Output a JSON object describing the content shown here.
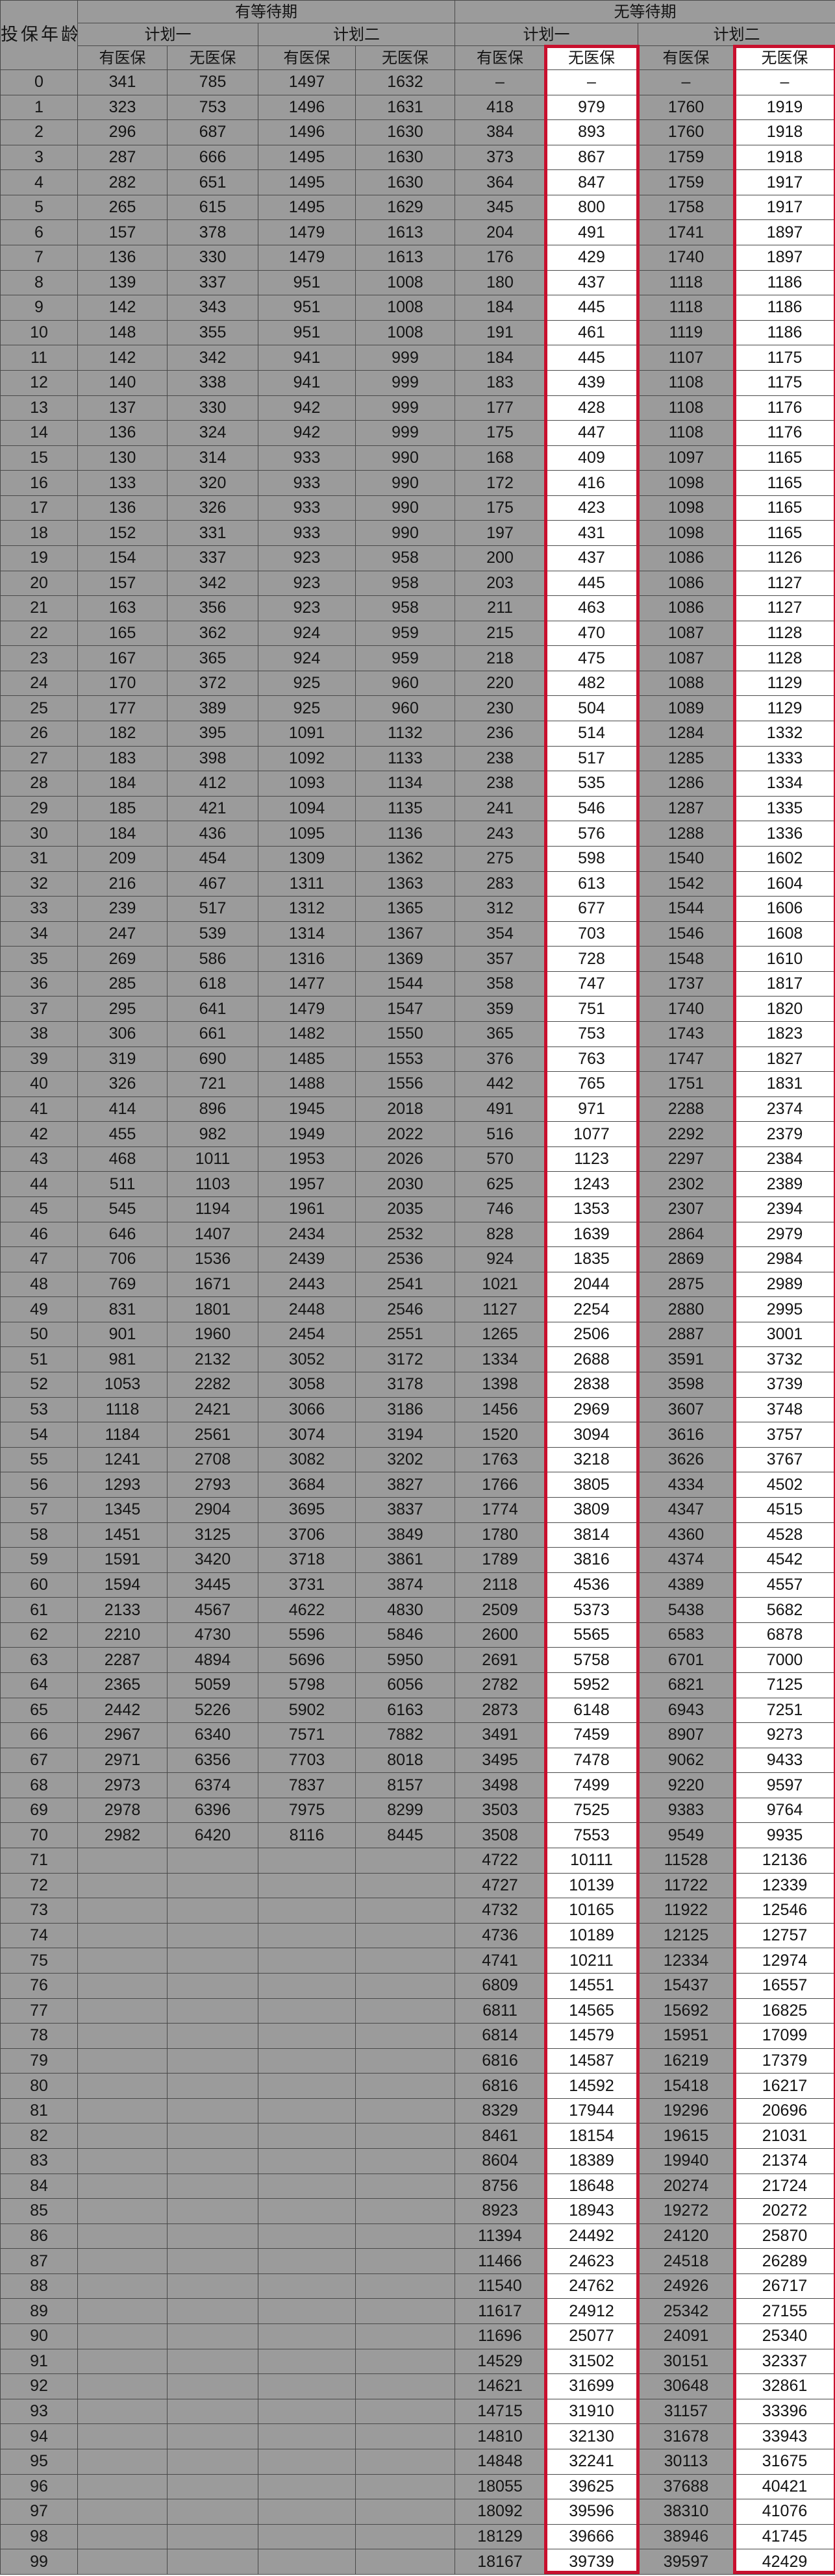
{
  "headers": {
    "age": "投保年龄（周岁）",
    "group_waiting": "有等待期",
    "group_no_waiting": "无等待期",
    "plan1": "计划一",
    "plan2": "计划二",
    "with_insurance": "有医保",
    "without_insurance": "无医保"
  },
  "rows": [
    [
      "0",
      "341",
      "785",
      "1497",
      "1632",
      "–",
      "–",
      "–",
      "–"
    ],
    [
      "1",
      "323",
      "753",
      "1496",
      "1631",
      "418",
      "979",
      "1760",
      "1919"
    ],
    [
      "2",
      "296",
      "687",
      "1496",
      "1630",
      "384",
      "893",
      "1760",
      "1918"
    ],
    [
      "3",
      "287",
      "666",
      "1495",
      "1630",
      "373",
      "867",
      "1759",
      "1918"
    ],
    [
      "4",
      "282",
      "651",
      "1495",
      "1630",
      "364",
      "847",
      "1759",
      "1917"
    ],
    [
      "5",
      "265",
      "615",
      "1495",
      "1629",
      "345",
      "800",
      "1758",
      "1917"
    ],
    [
      "6",
      "157",
      "378",
      "1479",
      "1613",
      "204",
      "491",
      "1741",
      "1897"
    ],
    [
      "7",
      "136",
      "330",
      "1479",
      "1613",
      "176",
      "429",
      "1740",
      "1897"
    ],
    [
      "8",
      "139",
      "337",
      "951",
      "1008",
      "180",
      "437",
      "1118",
      "1186"
    ],
    [
      "9",
      "142",
      "343",
      "951",
      "1008",
      "184",
      "445",
      "1118",
      "1186"
    ],
    [
      "10",
      "148",
      "355",
      "951",
      "1008",
      "191",
      "461",
      "1119",
      "1186"
    ],
    [
      "11",
      "142",
      "342",
      "941",
      "999",
      "184",
      "445",
      "1107",
      "1175"
    ],
    [
      "12",
      "140",
      "338",
      "941",
      "999",
      "183",
      "439",
      "1108",
      "1175"
    ],
    [
      "13",
      "137",
      "330",
      "942",
      "999",
      "177",
      "428",
      "1108",
      "1176"
    ],
    [
      "14",
      "136",
      "324",
      "942",
      "999",
      "175",
      "447",
      "1108",
      "1176"
    ],
    [
      "15",
      "130",
      "314",
      "933",
      "990",
      "168",
      "409",
      "1097",
      "1165"
    ],
    [
      "16",
      "133",
      "320",
      "933",
      "990",
      "172",
      "416",
      "1098",
      "1165"
    ],
    [
      "17",
      "136",
      "326",
      "933",
      "990",
      "175",
      "423",
      "1098",
      "1165"
    ],
    [
      "18",
      "152",
      "331",
      "933",
      "990",
      "197",
      "431",
      "1098",
      "1165"
    ],
    [
      "19",
      "154",
      "337",
      "923",
      "958",
      "200",
      "437",
      "1086",
      "1126"
    ],
    [
      "20",
      "157",
      "342",
      "923",
      "958",
      "203",
      "445",
      "1086",
      "1127"
    ],
    [
      "21",
      "163",
      "356",
      "923",
      "958",
      "211",
      "463",
      "1086",
      "1127"
    ],
    [
      "22",
      "165",
      "362",
      "924",
      "959",
      "215",
      "470",
      "1087",
      "1128"
    ],
    [
      "23",
      "167",
      "365",
      "924",
      "959",
      "218",
      "475",
      "1087",
      "1128"
    ],
    [
      "24",
      "170",
      "372",
      "925",
      "960",
      "220",
      "482",
      "1088",
      "1129"
    ],
    [
      "25",
      "177",
      "389",
      "925",
      "960",
      "230",
      "504",
      "1089",
      "1129"
    ],
    [
      "26",
      "182",
      "395",
      "1091",
      "1132",
      "236",
      "514",
      "1284",
      "1332"
    ],
    [
      "27",
      "183",
      "398",
      "1092",
      "1133",
      "238",
      "517",
      "1285",
      "1333"
    ],
    [
      "28",
      "184",
      "412",
      "1093",
      "1134",
      "238",
      "535",
      "1286",
      "1334"
    ],
    [
      "29",
      "185",
      "421",
      "1094",
      "1135",
      "241",
      "546",
      "1287",
      "1335"
    ],
    [
      "30",
      "184",
      "436",
      "1095",
      "1136",
      "243",
      "576",
      "1288",
      "1336"
    ],
    [
      "31",
      "209",
      "454",
      "1309",
      "1362",
      "275",
      "598",
      "1540",
      "1602"
    ],
    [
      "32",
      "216",
      "467",
      "1311",
      "1363",
      "283",
      "613",
      "1542",
      "1604"
    ],
    [
      "33",
      "239",
      "517",
      "1312",
      "1365",
      "312",
      "677",
      "1544",
      "1606"
    ],
    [
      "34",
      "247",
      "539",
      "1314",
      "1367",
      "354",
      "703",
      "1546",
      "1608"
    ],
    [
      "35",
      "269",
      "586",
      "1316",
      "1369",
      "357",
      "728",
      "1548",
      "1610"
    ],
    [
      "36",
      "285",
      "618",
      "1477",
      "1544",
      "358",
      "747",
      "1737",
      "1817"
    ],
    [
      "37",
      "295",
      "641",
      "1479",
      "1547",
      "359",
      "751",
      "1740",
      "1820"
    ],
    [
      "38",
      "306",
      "661",
      "1482",
      "1550",
      "365",
      "753",
      "1743",
      "1823"
    ],
    [
      "39",
      "319",
      "690",
      "1485",
      "1553",
      "376",
      "763",
      "1747",
      "1827"
    ],
    [
      "40",
      "326",
      "721",
      "1488",
      "1556",
      "442",
      "765",
      "1751",
      "1831"
    ],
    [
      "41",
      "414",
      "896",
      "1945",
      "2018",
      "491",
      "971",
      "2288",
      "2374"
    ],
    [
      "42",
      "455",
      "982",
      "1949",
      "2022",
      "516",
      "1077",
      "2292",
      "2379"
    ],
    [
      "43",
      "468",
      "1011",
      "1953",
      "2026",
      "570",
      "1123",
      "2297",
      "2384"
    ],
    [
      "44",
      "511",
      "1103",
      "1957",
      "2030",
      "625",
      "1243",
      "2302",
      "2389"
    ],
    [
      "45",
      "545",
      "1194",
      "1961",
      "2035",
      "746",
      "1353",
      "2307",
      "2394"
    ],
    [
      "46",
      "646",
      "1407",
      "2434",
      "2532",
      "828",
      "1639",
      "2864",
      "2979"
    ],
    [
      "47",
      "706",
      "1536",
      "2439",
      "2536",
      "924",
      "1835",
      "2869",
      "2984"
    ],
    [
      "48",
      "769",
      "1671",
      "2443",
      "2541",
      "1021",
      "2044",
      "2875",
      "2989"
    ],
    [
      "49",
      "831",
      "1801",
      "2448",
      "2546",
      "1127",
      "2254",
      "2880",
      "2995"
    ],
    [
      "50",
      "901",
      "1960",
      "2454",
      "2551",
      "1265",
      "2506",
      "2887",
      "3001"
    ],
    [
      "51",
      "981",
      "2132",
      "3052",
      "3172",
      "1334",
      "2688",
      "3591",
      "3732"
    ],
    [
      "52",
      "1053",
      "2282",
      "3058",
      "3178",
      "1398",
      "2838",
      "3598",
      "3739"
    ],
    [
      "53",
      "1118",
      "2421",
      "3066",
      "3186",
      "1456",
      "2969",
      "3607",
      "3748"
    ],
    [
      "54",
      "1184",
      "2561",
      "3074",
      "3194",
      "1520",
      "3094",
      "3616",
      "3757"
    ],
    [
      "55",
      "1241",
      "2708",
      "3082",
      "3202",
      "1763",
      "3218",
      "3626",
      "3767"
    ],
    [
      "56",
      "1293",
      "2793",
      "3684",
      "3827",
      "1766",
      "3805",
      "4334",
      "4502"
    ],
    [
      "57",
      "1345",
      "2904",
      "3695",
      "3837",
      "1774",
      "3809",
      "4347",
      "4515"
    ],
    [
      "58",
      "1451",
      "3125",
      "3706",
      "3849",
      "1780",
      "3814",
      "4360",
      "4528"
    ],
    [
      "59",
      "1591",
      "3420",
      "3718",
      "3861",
      "1789",
      "3816",
      "4374",
      "4542"
    ],
    [
      "60",
      "1594",
      "3445",
      "3731",
      "3874",
      "2118",
      "4536",
      "4389",
      "4557"
    ],
    [
      "61",
      "2133",
      "4567",
      "4622",
      "4830",
      "2509",
      "5373",
      "5438",
      "5682"
    ],
    [
      "62",
      "2210",
      "4730",
      "5596",
      "5846",
      "2600",
      "5565",
      "6583",
      "6878"
    ],
    [
      "63",
      "2287",
      "4894",
      "5696",
      "5950",
      "2691",
      "5758",
      "6701",
      "7000"
    ],
    [
      "64",
      "2365",
      "5059",
      "5798",
      "6056",
      "2782",
      "5952",
      "6821",
      "7125"
    ],
    [
      "65",
      "2442",
      "5226",
      "5902",
      "6163",
      "2873",
      "6148",
      "6943",
      "7251"
    ],
    [
      "66",
      "2967",
      "6340",
      "7571",
      "7882",
      "3491",
      "7459",
      "8907",
      "9273"
    ],
    [
      "67",
      "2971",
      "6356",
      "7703",
      "8018",
      "3495",
      "7478",
      "9062",
      "9433"
    ],
    [
      "68",
      "2973",
      "6374",
      "7837",
      "8157",
      "3498",
      "7499",
      "9220",
      "9597"
    ],
    [
      "69",
      "2978",
      "6396",
      "7975",
      "8299",
      "3503",
      "7525",
      "9383",
      "9764"
    ],
    [
      "70",
      "2982",
      "6420",
      "8116",
      "8445",
      "3508",
      "7553",
      "9549",
      "9935"
    ],
    [
      "71",
      "",
      "",
      "",
      "",
      "4722",
      "10111",
      "11528",
      "12136"
    ],
    [
      "72",
      "",
      "",
      "",
      "",
      "4727",
      "10139",
      "11722",
      "12339"
    ],
    [
      "73",
      "",
      "",
      "",
      "",
      "4732",
      "10165",
      "11922",
      "12546"
    ],
    [
      "74",
      "",
      "",
      "",
      "",
      "4736",
      "10189",
      "12125",
      "12757"
    ],
    [
      "75",
      "",
      "",
      "",
      "",
      "4741",
      "10211",
      "12334",
      "12974"
    ],
    [
      "76",
      "",
      "",
      "",
      "",
      "6809",
      "14551",
      "15437",
      "16557"
    ],
    [
      "77",
      "",
      "",
      "",
      "",
      "6811",
      "14565",
      "15692",
      "16825"
    ],
    [
      "78",
      "",
      "",
      "",
      "",
      "6814",
      "14579",
      "15951",
      "17099"
    ],
    [
      "79",
      "",
      "",
      "",
      "",
      "6816",
      "14587",
      "16219",
      "17379"
    ],
    [
      "80",
      "",
      "",
      "",
      "",
      "6816",
      "14592",
      "15418",
      "16217"
    ],
    [
      "81",
      "",
      "",
      "",
      "",
      "8329",
      "17944",
      "19296",
      "20696"
    ],
    [
      "82",
      "",
      "",
      "",
      "",
      "8461",
      "18154",
      "19615",
      "21031"
    ],
    [
      "83",
      "",
      "",
      "",
      "",
      "8604",
      "18389",
      "19940",
      "21374"
    ],
    [
      "84",
      "",
      "",
      "",
      "",
      "8756",
      "18648",
      "20274",
      "21724"
    ],
    [
      "85",
      "",
      "",
      "",
      "",
      "8923",
      "18943",
      "19272",
      "20272"
    ],
    [
      "86",
      "",
      "",
      "",
      "",
      "11394",
      "24492",
      "24120",
      "25870"
    ],
    [
      "87",
      "",
      "",
      "",
      "",
      "11466",
      "24623",
      "24518",
      "26289"
    ],
    [
      "88",
      "",
      "",
      "",
      "",
      "11540",
      "24762",
      "24926",
      "26717"
    ],
    [
      "89",
      "",
      "",
      "",
      "",
      "11617",
      "24912",
      "25342",
      "27155"
    ],
    [
      "90",
      "",
      "",
      "",
      "",
      "11696",
      "25077",
      "24091",
      "25340"
    ],
    [
      "91",
      "",
      "",
      "",
      "",
      "14529",
      "31502",
      "30151",
      "32337"
    ],
    [
      "92",
      "",
      "",
      "",
      "",
      "14621",
      "31699",
      "30648",
      "32861"
    ],
    [
      "93",
      "",
      "",
      "",
      "",
      "14715",
      "31910",
      "31157",
      "33396"
    ],
    [
      "94",
      "",
      "",
      "",
      "",
      "14810",
      "32130",
      "31678",
      "33943"
    ],
    [
      "95",
      "",
      "",
      "",
      "",
      "14848",
      "32241",
      "30113",
      "31675"
    ],
    [
      "96",
      "",
      "",
      "",
      "",
      "18055",
      "39625",
      "37688",
      "40421"
    ],
    [
      "97",
      "",
      "",
      "",
      "",
      "18092",
      "39596",
      "38310",
      "41076"
    ],
    [
      "98",
      "",
      "",
      "",
      "",
      "18129",
      "39666",
      "38946",
      "41745"
    ],
    [
      "99",
      "",
      "",
      "",
      "",
      "18167",
      "39739",
      "39597",
      "42429"
    ]
  ],
  "colors": {
    "cell_bg": "#9b9b9b",
    "highlight_bg": "#ffffff",
    "highlight_border": "#c8102e",
    "grid": "#4a4a4a",
    "text": "#141414"
  }
}
